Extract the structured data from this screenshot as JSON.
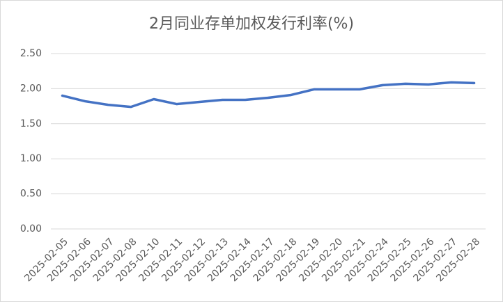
{
  "chart_data": {
    "type": "line",
    "title": "2月同业存单加权发行利率(%)",
    "categories": [
      "2025-02-05",
      "2025-02-06",
      "2025-02-07",
      "2025-02-08",
      "2025-02-10",
      "2025-02-11",
      "2025-02-12",
      "2025-02-13",
      "2025-02-14",
      "2025-02-17",
      "2025-02-18",
      "2025-02-19",
      "2025-02-20",
      "2025-02-21",
      "2025-02-24",
      "2025-02-25",
      "2025-02-26",
      "2025-02-27",
      "2025-02-28"
    ],
    "values": [
      1.9,
      1.82,
      1.77,
      1.74,
      1.85,
      1.78,
      1.81,
      1.84,
      1.84,
      1.87,
      1.91,
      1.99,
      1.99,
      1.99,
      2.05,
      2.07,
      2.06,
      2.09,
      2.08
    ],
    "color": "#4472c4",
    "ylim": [
      0,
      2.5
    ],
    "yticks": [
      {
        "value": 0,
        "label": "0.00"
      },
      {
        "value": 0.5,
        "label": "0.50"
      },
      {
        "value": 1,
        "label": "1.00"
      },
      {
        "value": 1.5,
        "label": "1.50"
      },
      {
        "value": 2,
        "label": "2.00"
      },
      {
        "value": 2.5,
        "label": "2.50"
      }
    ],
    "grid": true
  }
}
